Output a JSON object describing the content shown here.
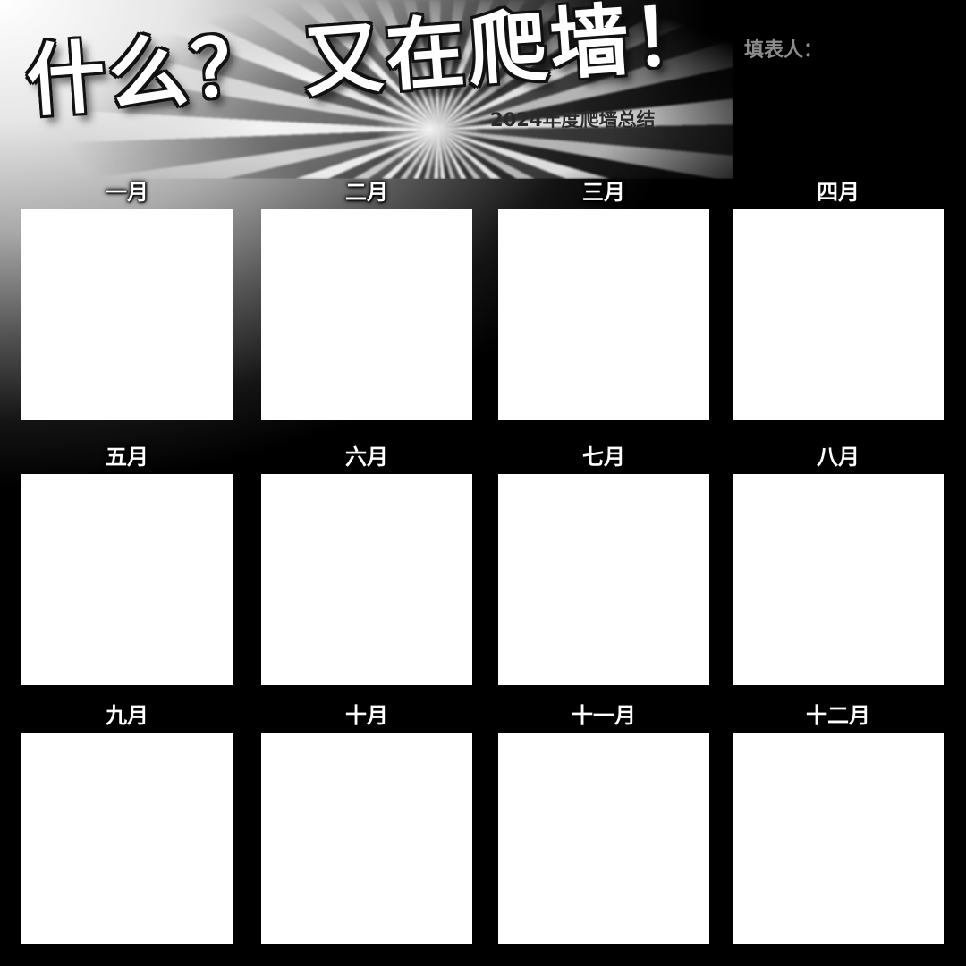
{
  "header": {
    "title": "什么？ 又在爬墙！",
    "subtitle": "2024年度爬墙总结",
    "filler_label": "填表人："
  },
  "months": [
    {
      "label": "一月"
    },
    {
      "label": "二月"
    },
    {
      "label": "三月"
    },
    {
      "label": "四月"
    },
    {
      "label": "五月"
    },
    {
      "label": "六月"
    },
    {
      "label": "七月"
    },
    {
      "label": "八月"
    },
    {
      "label": "九月"
    },
    {
      "label": "十月"
    },
    {
      "label": "十一月"
    },
    {
      "label": "十二月"
    }
  ],
  "colors": {
    "background": "#000000",
    "box": "#ffffff",
    "title": "#ffffff",
    "subtitle": "#2a2a2a"
  }
}
